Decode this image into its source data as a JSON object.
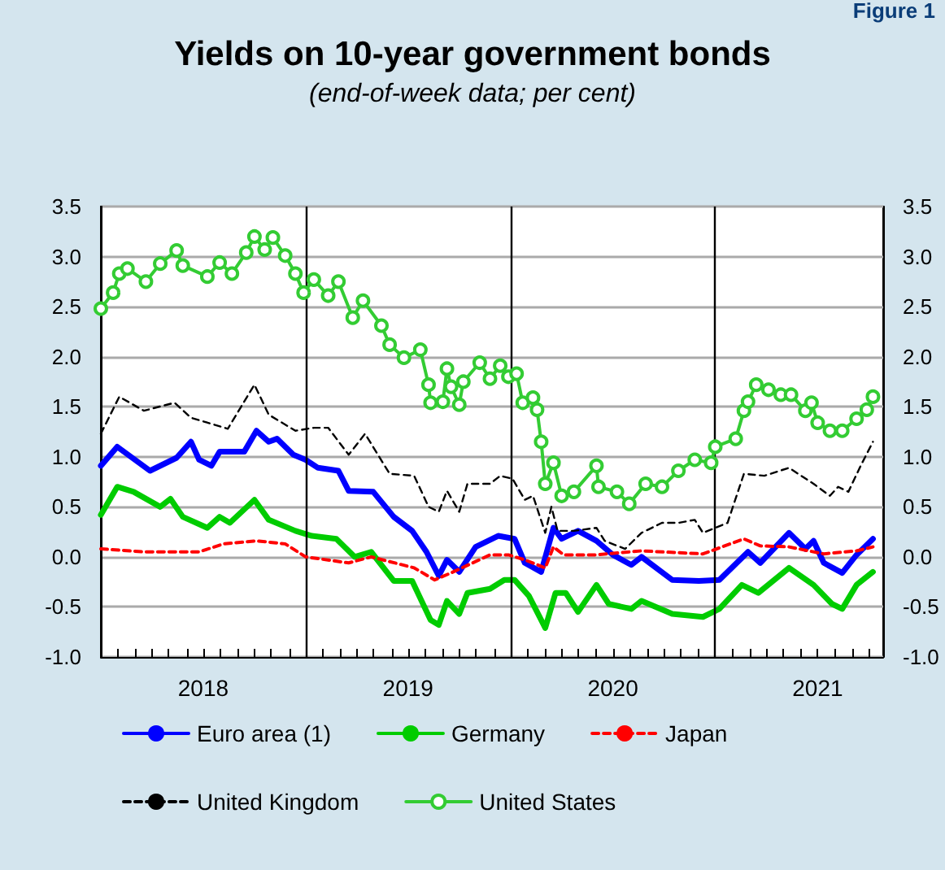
{
  "chart_data": {
    "type": "line",
    "title": "Yields on 10-year government bonds",
    "subtitle": "(end-of-week data; per cent)",
    "annotations": [
      "Figure 1"
    ],
    "xlim": [
      2018,
      2021.82
    ],
    "xticks": [
      {
        "value": 2018.08,
        "label": null
      },
      {
        "value": 2018.17,
        "label": null
      },
      {
        "value": 2018.25,
        "label": null
      },
      {
        "value": 2018.33,
        "label": null
      },
      {
        "value": 2018.42,
        "label": null
      },
      {
        "value": 2018.5,
        "label": "2018"
      },
      {
        "value": 2018.58,
        "label": null
      },
      {
        "value": 2018.67,
        "label": null
      },
      {
        "value": 2018.75,
        "label": null
      },
      {
        "value": 2018.83,
        "label": null
      },
      {
        "value": 2018.92,
        "label": null
      },
      {
        "value": 2019,
        "label": null
      },
      {
        "value": 2019.08,
        "label": null
      },
      {
        "value": 2019.17,
        "label": null
      },
      {
        "value": 2019.25,
        "label": null
      },
      {
        "value": 2019.33,
        "label": null
      },
      {
        "value": 2019.42,
        "label": null
      },
      {
        "value": 2019.5,
        "label": "2019"
      },
      {
        "value": 2019.58,
        "label": null
      },
      {
        "value": 2019.67,
        "label": null
      },
      {
        "value": 2019.75,
        "label": null
      },
      {
        "value": 2019.83,
        "label": null
      },
      {
        "value": 2019.92,
        "label": null
      },
      {
        "value": 2020,
        "label": null
      },
      {
        "value": 2020.08,
        "label": null
      },
      {
        "value": 2020.17,
        "label": null
      },
      {
        "value": 2020.25,
        "label": null
      },
      {
        "value": 2020.33,
        "label": null
      },
      {
        "value": 2020.42,
        "label": null
      },
      {
        "value": 2020.5,
        "label": "2020"
      },
      {
        "value": 2020.58,
        "label": null
      },
      {
        "value": 2020.67,
        "label": null
      },
      {
        "value": 2020.75,
        "label": null
      },
      {
        "value": 2020.83,
        "label": null
      },
      {
        "value": 2020.92,
        "label": null
      },
      {
        "value": 2021,
        "label": null
      },
      {
        "value": 2021.08,
        "label": null
      },
      {
        "value": 2021.17,
        "label": null
      },
      {
        "value": 2021.25,
        "label": null
      },
      {
        "value": 2021.33,
        "label": null
      },
      {
        "value": 2021.42,
        "label": null
      },
      {
        "value": 2021.5,
        "label": "2021"
      },
      {
        "value": 2021.58,
        "label": null
      },
      {
        "value": 2021.67,
        "label": null
      },
      {
        "value": 2021.75,
        "label": null
      }
    ],
    "ylim": [
      -1,
      3.5
    ],
    "yticks": [
      {
        "value": -1,
        "label": "-1.0"
      },
      {
        "value": -0.5,
        "label": "-0.5"
      },
      {
        "value": 0,
        "label": "0.0"
      },
      {
        "value": 0.5,
        "label": "0.5"
      },
      {
        "value": 1,
        "label": "1.0"
      },
      {
        "value": 1.5,
        "label": "1.5"
      },
      {
        "value": 2,
        "label": "2.0"
      },
      {
        "value": 2.5,
        "label": "2.5"
      },
      {
        "value": 3,
        "label": "3.0"
      },
      {
        "value": 3.5,
        "label": "3.5"
      }
    ],
    "y2lim": [
      -1,
      3.5
    ],
    "y2ticks": [
      {
        "value": -1,
        "label": "-1.0"
      },
      {
        "value": -0.5,
        "label": "-0.5"
      },
      {
        "value": 0,
        "label": "0.0"
      },
      {
        "value": 0.5,
        "label": "0.5"
      },
      {
        "value": 1,
        "label": "1.0"
      },
      {
        "value": 1.5,
        "label": "1.5"
      },
      {
        "value": 2,
        "label": "2.0"
      },
      {
        "value": 2.5,
        "label": "2.5"
      },
      {
        "value": 3,
        "label": "3.0"
      },
      {
        "value": 3.5,
        "label": "3.5"
      }
    ],
    "grid": "y",
    "legend": "bottom",
    "ref_lines": [
      {
        "axis": "x",
        "value": 2019,
        "color": "#000000"
      },
      {
        "axis": "x",
        "value": 2020,
        "color": "#000000"
      },
      {
        "axis": "x",
        "value": 2021,
        "color": "#000000"
      }
    ],
    "series": [
      {
        "name": "Euro area (1)",
        "color": "#0000ff",
        "marker": "none",
        "line_style": "solid",
        "x": [
          2018.0,
          2018.08,
          2018.24,
          2018.37,
          2018.44,
          2018.48,
          2018.54,
          2018.58,
          2018.7,
          2018.76,
          2018.82,
          2018.86,
          2018.94,
          2019.0,
          2019.06,
          2019.16,
          2019.21,
          2019.33,
          2019.43,
          2019.52,
          2019.59,
          2019.65,
          2019.69,
          2019.75,
          2019.83,
          2019.94,
          2020.02,
          2020.07,
          2020.15,
          2020.21,
          2020.25,
          2020.33,
          2020.42,
          2020.5,
          2020.59,
          2020.64,
          2020.79,
          2020.92,
          2021.02,
          2021.16,
          2021.22,
          2021.36,
          2021.44,
          2021.48,
          2021.53,
          2021.62,
          2021.69,
          2021.77
        ],
        "values": [
          0.91,
          1.1,
          0.86,
          0.99,
          1.15,
          0.97,
          0.91,
          1.05,
          1.05,
          1.26,
          1.15,
          1.18,
          1.02,
          0.97,
          0.89,
          0.86,
          0.66,
          0.65,
          0.4,
          0.26,
          0.05,
          -0.19,
          -0.03,
          -0.15,
          0.1,
          0.21,
          0.18,
          -0.06,
          -0.15,
          0.29,
          0.18,
          0.26,
          0.16,
          0.02,
          -0.08,
          0.0,
          -0.23,
          -0.24,
          -0.23,
          0.05,
          -0.06,
          0.24,
          0.08,
          0.16,
          -0.06,
          -0.16,
          0.02,
          0.18
        ]
      },
      {
        "name": "Germany",
        "color": "#00cc00",
        "marker": "none",
        "line_style": "solid",
        "x": [
          2018.0,
          2018.08,
          2018.16,
          2018.29,
          2018.34,
          2018.4,
          2018.52,
          2018.58,
          2018.63,
          2018.75,
          2018.82,
          2018.95,
          2019.03,
          2019.15,
          2019.24,
          2019.32,
          2019.43,
          2019.52,
          2019.61,
          2019.65,
          2019.69,
          2019.75,
          2019.79,
          2019.9,
          2019.97,
          2020.02,
          2020.09,
          2020.17,
          2020.22,
          2020.27,
          2020.33,
          2020.42,
          2020.48,
          2020.59,
          2020.64,
          2020.79,
          2020.94,
          2021.02,
          2021.13,
          2021.21,
          2021.36,
          2021.48,
          2021.57,
          2021.62,
          2021.69,
          2021.77
        ],
        "values": [
          0.42,
          0.7,
          0.65,
          0.5,
          0.58,
          0.4,
          0.29,
          0.4,
          0.34,
          0.57,
          0.37,
          0.26,
          0.21,
          0.18,
          0.0,
          0.05,
          -0.24,
          -0.24,
          -0.63,
          -0.68,
          -0.44,
          -0.57,
          -0.36,
          -0.32,
          -0.23,
          -0.23,
          -0.39,
          -0.71,
          -0.36,
          -0.36,
          -0.55,
          -0.28,
          -0.47,
          -0.52,
          -0.44,
          -0.57,
          -0.6,
          -0.52,
          -0.28,
          -0.36,
          -0.11,
          -0.28,
          -0.47,
          -0.52,
          -0.28,
          -0.15
        ]
      },
      {
        "name": "Japan",
        "color": "#ff0000",
        "marker": "none",
        "line_style": "dashed",
        "x": [
          2018.0,
          2018.21,
          2018.48,
          2018.6,
          2018.76,
          2018.9,
          2019.0,
          2019.21,
          2019.32,
          2019.53,
          2019.63,
          2019.71,
          2019.9,
          2019.99,
          2020.07,
          2020.17,
          2020.21,
          2020.26,
          2020.42,
          2020.64,
          2020.94,
          2021.14,
          2021.22,
          2021.36,
          2021.53,
          2021.69,
          2021.77
        ],
        "values": [
          0.08,
          0.05,
          0.05,
          0.13,
          0.16,
          0.13,
          0.0,
          -0.06,
          0.0,
          -0.11,
          -0.23,
          -0.16,
          0.02,
          0.02,
          -0.03,
          -0.11,
          0.1,
          0.02,
          0.02,
          0.06,
          0.03,
          0.18,
          0.11,
          0.1,
          0.03,
          0.06,
          0.1
        ]
      },
      {
        "name": "United Kingdom",
        "color": "#000000",
        "marker": "none",
        "line_style": "dashed",
        "x": [
          2018.0,
          2018.09,
          2018.21,
          2018.36,
          2018.44,
          2018.62,
          2018.75,
          2018.82,
          2018.95,
          2019.04,
          2019.11,
          2019.21,
          2019.29,
          2019.41,
          2019.53,
          2019.6,
          2019.65,
          2019.69,
          2019.75,
          2019.79,
          2019.9,
          2019.95,
          2020.01,
          2020.07,
          2020.11,
          2020.17,
          2020.2,
          2020.23,
          2020.31,
          2020.42,
          2020.46,
          2020.56,
          2020.64,
          2020.74,
          2020.82,
          2020.9,
          2020.94,
          2021.06,
          2021.14,
          2021.24,
          2021.36,
          2021.48,
          2021.56,
          2021.6,
          2021.65,
          2021.71,
          2021.77
        ],
        "values": [
          1.23,
          1.6,
          1.46,
          1.54,
          1.39,
          1.28,
          1.72,
          1.42,
          1.26,
          1.29,
          1.29,
          1.02,
          1.23,
          0.83,
          0.81,
          0.5,
          0.45,
          0.66,
          0.45,
          0.73,
          0.73,
          0.81,
          0.78,
          0.57,
          0.61,
          0.24,
          0.5,
          0.26,
          0.26,
          0.29,
          0.16,
          0.08,
          0.24,
          0.34,
          0.34,
          0.37,
          0.24,
          0.34,
          0.83,
          0.81,
          0.89,
          0.73,
          0.61,
          0.7,
          0.65,
          0.91,
          1.15
        ]
      },
      {
        "name": "United States",
        "color": "#33cc33",
        "marker": "circle",
        "line_style": "solid",
        "x": [
          2018.0,
          2018.06,
          2018.09,
          2018.13,
          2018.22,
          2018.29,
          2018.37,
          2018.4,
          2018.52,
          2018.58,
          2018.64,
          2018.71,
          2018.75,
          2018.8,
          2018.84,
          2018.9,
          2018.95,
          2018.99,
          2019.04,
          2019.11,
          2019.16,
          2019.23,
          2019.28,
          2019.37,
          2019.41,
          2019.48,
          2019.56,
          2019.6,
          2019.61,
          2019.67,
          2019.69,
          2019.71,
          2019.75,
          2019.77,
          2019.85,
          2019.9,
          2019.95,
          2019.99,
          2020.03,
          2020.06,
          2020.11,
          2020.13,
          2020.15,
          2020.17,
          2020.21,
          2020.25,
          2020.31,
          2020.42,
          2020.43,
          2020.52,
          2020.58,
          2020.66,
          2020.74,
          2020.82,
          2020.9,
          2020.98,
          2021.0,
          2021.1,
          2021.14,
          2021.16,
          2021.2,
          2021.26,
          2021.32,
          2021.37,
          2021.44,
          2021.47,
          2021.5,
          2021.56,
          2021.62,
          2021.69,
          2021.74,
          2021.77
        ],
        "values": [
          2.48,
          2.64,
          2.83,
          2.88,
          2.75,
          2.93,
          3.06,
          2.91,
          2.8,
          2.94,
          2.83,
          3.04,
          3.2,
          3.07,
          3.19,
          3.01,
          2.83,
          2.64,
          2.77,
          2.61,
          2.75,
          2.39,
          2.56,
          2.31,
          2.12,
          1.99,
          2.07,
          1.72,
          1.54,
          1.55,
          1.88,
          1.7,
          1.52,
          1.75,
          1.94,
          1.78,
          1.91,
          1.8,
          1.83,
          1.54,
          1.59,
          1.47,
          1.15,
          0.73,
          0.94,
          0.61,
          0.65,
          0.91,
          0.7,
          0.65,
          0.53,
          0.73,
          0.7,
          0.86,
          0.97,
          0.94,
          1.1,
          1.18,
          1.46,
          1.55,
          1.72,
          1.67,
          1.62,
          1.62,
          1.46,
          1.54,
          1.34,
          1.26,
          1.26,
          1.38,
          1.47,
          1.6
        ]
      }
    ]
  }
}
